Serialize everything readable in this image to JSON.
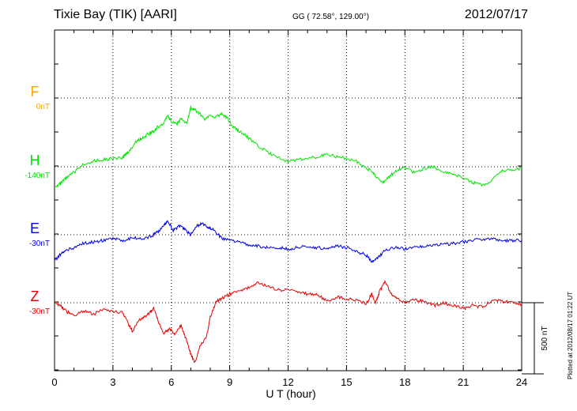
{
  "header": {
    "station": "Tixie Bay (TIK)  [AARI]",
    "coords": "GG ( 72.58°, 129.00°)",
    "date": "2012/07/17"
  },
  "footer": {
    "plotted": "Plotted at 2012/08/17 01:22 UT"
  },
  "chart_data": {
    "type": "line",
    "xlabel": "U T (hour)",
    "xlim": [
      0,
      24
    ],
    "x_ticks": [
      "0",
      "3",
      "6",
      "9",
      "12",
      "15",
      "18",
      "21",
      "24"
    ],
    "scale_label": "500 nT",
    "scale_nT": 500,
    "grid": true,
    "series": [
      {
        "name": "F",
        "baseline": "0nT",
        "color": "#ffa500",
        "x": [],
        "y": []
      },
      {
        "name": "H",
        "baseline": "-140nT",
        "color": "#00e600",
        "x": [
          0,
          0.3,
          0.6,
          1.0,
          1.5,
          2.0,
          2.5,
          3.0,
          3.5,
          3.6,
          3.9,
          4.2,
          4.5,
          4.8,
          5.1,
          5.3,
          5.6,
          5.8,
          6.0,
          6.3,
          6.5,
          6.8,
          7.0,
          7.2,
          7.4,
          7.7,
          8.0,
          8.3,
          8.6,
          8.9,
          9.1,
          9.4,
          9.7,
          10.0,
          10.5,
          11.0,
          11.5,
          12.0,
          12.5,
          13.0,
          13.5,
          14.0,
          14.5,
          15.0,
          15.5,
          16.0,
          16.3,
          16.6,
          16.9,
          17.2,
          17.6,
          18.0,
          18.5,
          19.0,
          19.5,
          20.0,
          20.5,
          21.0,
          21.5,
          22.0,
          22.5,
          23.0,
          23.5,
          24.0
        ],
        "y": [
          -140,
          -120,
          -80,
          -40,
          20,
          40,
          50,
          60,
          60,
          80,
          120,
          180,
          200,
          230,
          250,
          280,
          300,
          360,
          320,
          300,
          340,
          300,
          420,
          400,
          380,
          330,
          360,
          350,
          370,
          340,
          290,
          260,
          230,
          200,
          140,
          100,
          60,
          40,
          50,
          60,
          70,
          90,
          70,
          60,
          40,
          -10,
          -30,
          -80,
          -110,
          -70,
          -20,
          -10,
          -40,
          -10,
          0,
          -40,
          -50,
          -80,
          -110,
          -130,
          -90,
          -30,
          -20,
          -10
        ]
      },
      {
        "name": "E",
        "baseline": "-30nT",
        "color": "#0000e6",
        "x": [
          0,
          0.3,
          0.6,
          1.0,
          1.5,
          2.0,
          2.5,
          3.0,
          3.5,
          4.0,
          4.5,
          5.0,
          5.3,
          5.6,
          5.8,
          6.1,
          6.4,
          6.7,
          7.0,
          7.3,
          7.6,
          7.9,
          8.2,
          8.6,
          9.0,
          9.5,
          10.0,
          10.5,
          11.0,
          11.5,
          12.0,
          12.5,
          13.0,
          13.5,
          14.0,
          14.5,
          15.0,
          15.5,
          16.0,
          16.3,
          16.6,
          17.0,
          17.5,
          18.0,
          18.5,
          19.0,
          19.5,
          20.0,
          20.5,
          21.0,
          21.5,
          22.0,
          22.5,
          23.0,
          23.5,
          24.0
        ],
        "y": [
          -180,
          -140,
          -110,
          -90,
          -60,
          -50,
          -40,
          -30,
          -40,
          -20,
          -30,
          -10,
          20,
          60,
          100,
          30,
          60,
          40,
          0,
          60,
          80,
          50,
          40,
          -30,
          -40,
          -50,
          -70,
          -80,
          -90,
          -90,
          -100,
          -90,
          -80,
          -90,
          -100,
          -80,
          -90,
          -120,
          -140,
          -190,
          -160,
          -110,
          -90,
          -100,
          -90,
          -80,
          -70,
          -70,
          -60,
          -50,
          -40,
          -30,
          -30,
          -40,
          -40,
          -40
        ]
      },
      {
        "name": "Z",
        "baseline": "-30nT",
        "color": "#e60000",
        "x": [
          0,
          0.3,
          0.6,
          1.0,
          1.5,
          2.0,
          2.5,
          3.0,
          3.5,
          3.8,
          4.0,
          4.3,
          4.6,
          4.9,
          5.1,
          5.3,
          5.6,
          5.9,
          6.2,
          6.5,
          6.8,
          7.0,
          7.2,
          7.5,
          7.8,
          8.0,
          8.3,
          8.6,
          9.0,
          9.5,
          10.0,
          10.5,
          11.0,
          11.5,
          12.0,
          12.5,
          13.0,
          13.5,
          14.0,
          14.5,
          15.0,
          15.5,
          16.0,
          16.3,
          16.5,
          16.7,
          17.0,
          17.3,
          17.6,
          18.0,
          18.5,
          19.0,
          19.5,
          20.0,
          20.5,
          21.0,
          21.5,
          22.0,
          22.5,
          23.0,
          23.5,
          24.0
        ],
        "y": [
          0,
          -20,
          -60,
          -90,
          -60,
          -80,
          -50,
          -60,
          -70,
          -150,
          -200,
          -130,
          -100,
          -70,
          -40,
          -120,
          -220,
          -180,
          -220,
          -160,
          -270,
          -360,
          -420,
          -300,
          -250,
          -100,
          10,
          30,
          60,
          80,
          110,
          140,
          110,
          90,
          90,
          80,
          60,
          60,
          10,
          40,
          30,
          20,
          -10,
          60,
          0,
          80,
          150,
          60,
          30,
          0,
          20,
          10,
          -20,
          0,
          -20,
          -40,
          -20,
          -30,
          20,
          10,
          0,
          -10
        ]
      }
    ]
  }
}
